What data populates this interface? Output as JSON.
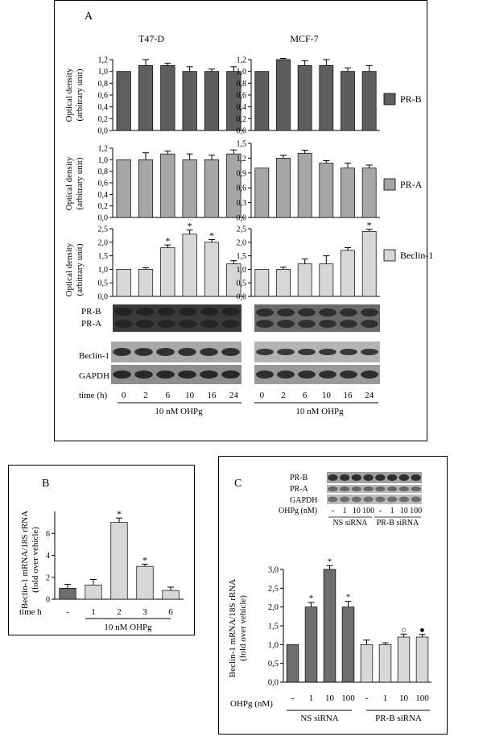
{
  "colors": {
    "prb": "#5e5e5e",
    "pra": "#a6a6a6",
    "beclin": "#d7d7d7",
    "ns": "#6e6e6e",
    "prbsi": "#d7d7d7",
    "blot_band": "#222222",
    "blot_bg": "#9a9a9a"
  },
  "panel_a": {
    "label": "A",
    "col_titles": [
      "T47-D",
      "MCF-7"
    ],
    "ylabel_line1": "Optical density",
    "ylabel_line2": "(arbitrary unit)",
    "legend": [
      "PR-B",
      "PR-A",
      "Beclin-1"
    ],
    "blot_labels": {
      "prb": "PR-B",
      "pra": "PR-A",
      "beclin": "Beclin-1",
      "gapdh": "GAPDH"
    },
    "time_label": "time (h)",
    "times": [
      "0",
      "2",
      "6",
      "10",
      "16",
      "24"
    ],
    "treatment": "10 nM OHPg"
  },
  "panel_b": {
    "label": "B",
    "ylabel_line1": "Beclin-1 mRNA/18S rRNA",
    "ylabel_line2": "(fold over vehicle)",
    "time_label": "time h",
    "categories": [
      "-",
      "1",
      "2",
      "3",
      "6"
    ],
    "treatment": "10 nM OHPg"
  },
  "panel_c": {
    "label": "C",
    "blot_labels": {
      "prb": "PR-B",
      "pra": "PR-A",
      "gapdh": "GAPDH"
    },
    "blot_dose_label": "OHPg (nM)",
    "blot_doses": [
      "-",
      "1",
      "10",
      "100",
      "-",
      "1",
      "10",
      "100"
    ],
    "ylabel_line1": "Beclin-1 mRNA/18S rRNA",
    "ylabel_line2": "(fold over vehicle)",
    "dose_label": "OHPg (nM)",
    "categories": [
      "-",
      "1",
      "10",
      "100",
      "-",
      "1",
      "10",
      "100"
    ],
    "groups": [
      "NS siRNA",
      "PR-B siRNA"
    ]
  },
  "chart_data": [
    {
      "id": "a1",
      "type": "bar",
      "categories": [
        "0",
        "2",
        "6",
        "10",
        "16",
        "24"
      ],
      "values": [
        1.0,
        1.1,
        1.1,
        1.0,
        1.0,
        1.0
      ],
      "errors": [
        0,
        0.1,
        0.04,
        0.08,
        0.04,
        0.08
      ],
      "sig": [
        false,
        false,
        false,
        false,
        false,
        false
      ],
      "ylim": [
        0,
        1.2
      ],
      "yticks": [
        "0,0",
        "0,2",
        "0,4",
        "0,6",
        "0,8",
        "1,0",
        "1,2"
      ]
    },
    {
      "id": "a2",
      "type": "bar",
      "categories": [
        "0",
        "2",
        "6",
        "10",
        "16",
        "24"
      ],
      "values": [
        1.0,
        1.2,
        1.1,
        1.1,
        1.0,
        1.0
      ],
      "errors": [
        0,
        0.02,
        0.08,
        0.1,
        0.06,
        0.1
      ],
      "sig": [
        false,
        false,
        false,
        false,
        false,
        false
      ],
      "ylim": [
        0,
        1.2
      ],
      "yticks": [
        "0,0",
        "0,2",
        "0,4",
        "0,6",
        "0,8",
        "1,0",
        "1,2"
      ]
    },
    {
      "id": "a3",
      "type": "bar",
      "categories": [
        "0",
        "2",
        "6",
        "10",
        "16",
        "24"
      ],
      "values": [
        1.0,
        1.0,
        1.1,
        1.0,
        1.0,
        1.1
      ],
      "errors": [
        0,
        0.12,
        0.05,
        0.1,
        0.08,
        0.07
      ],
      "sig": [
        false,
        false,
        false,
        false,
        false,
        false
      ],
      "ylim": [
        0,
        1.2
      ],
      "yticks": [
        "0,0",
        "0,2",
        "0,4",
        "0,6",
        "0,8",
        "1,0",
        "1,2"
      ]
    },
    {
      "id": "a4",
      "type": "bar",
      "categories": [
        "0",
        "2",
        "6",
        "10",
        "16",
        "24"
      ],
      "values": [
        1.0,
        1.2,
        1.3,
        1.1,
        1.0,
        1.0
      ],
      "errors": [
        0,
        0.06,
        0.06,
        0.05,
        0.1,
        0.06
      ],
      "sig": [
        false,
        false,
        false,
        false,
        false,
        false
      ],
      "ylim": [
        0,
        1.5
      ],
      "yticks": [
        "0,0",
        "0,3",
        "0,6",
        "0,9",
        "1,2",
        "1,5"
      ]
    },
    {
      "id": "a5",
      "type": "bar",
      "categories": [
        "0",
        "2",
        "6",
        "10",
        "16",
        "24"
      ],
      "values": [
        1.0,
        1.0,
        1.8,
        2.3,
        2.0,
        1.2
      ],
      "errors": [
        0,
        0.06,
        0.1,
        0.15,
        0.1,
        0.12
      ],
      "sig": [
        false,
        false,
        true,
        true,
        true,
        false
      ],
      "ylim": [
        0,
        2.5
      ],
      "yticks": [
        "0,0",
        "0,5",
        "1,0",
        "1,5",
        "2,0",
        "2,5"
      ]
    },
    {
      "id": "a6",
      "type": "bar",
      "categories": [
        "0",
        "2",
        "6",
        "10",
        "16",
        "24"
      ],
      "values": [
        1.0,
        1.0,
        1.2,
        1.2,
        1.7,
        2.4
      ],
      "errors": [
        0,
        0.08,
        0.18,
        0.3,
        0.1,
        0.08
      ],
      "sig": [
        false,
        false,
        false,
        false,
        false,
        true
      ],
      "ylim": [
        0,
        2.5
      ],
      "yticks": [
        "0,0",
        "0,5",
        "1,0",
        "1,5",
        "2,0",
        "2,5"
      ]
    },
    {
      "id": "b",
      "type": "bar",
      "categories": [
        "-",
        "1",
        "2",
        "3",
        "6"
      ],
      "values": [
        1.0,
        1.3,
        7.0,
        3.0,
        0.8
      ],
      "errors": [
        0.35,
        0.5,
        0.4,
        0.2,
        0.3
      ],
      "sig": [
        false,
        false,
        true,
        true,
        false
      ],
      "ylim": [
        0,
        8
      ],
      "yticks": [
        "0",
        "2",
        "4",
        "6"
      ],
      "ytick_values": [
        0,
        2,
        4,
        6
      ]
    },
    {
      "id": "c",
      "type": "bar",
      "categories": [
        "-",
        "1",
        "10",
        "100",
        "-",
        "1",
        "10",
        "100"
      ],
      "groups": [
        "NS siRNA",
        "NS siRNA",
        "NS siRNA",
        "NS siRNA",
        "PR-B siRNA",
        "PR-B siRNA",
        "PR-B siRNA",
        "PR-B siRNA"
      ],
      "values": [
        1.0,
        2.0,
        3.0,
        2.0,
        1.0,
        1.0,
        1.2,
        1.2
      ],
      "errors": [
        0,
        0.12,
        0.1,
        0.15,
        0.12,
        0.05,
        0.08,
        0.07
      ],
      "marks": [
        "",
        "*",
        "*",
        "*",
        "",
        "",
        "○",
        "●"
      ],
      "ylim": [
        0,
        3.0
      ],
      "yticks": [
        "0,0",
        "0,5",
        "1,0",
        "1,5",
        "2,0",
        "2,5",
        "3,0"
      ]
    }
  ]
}
